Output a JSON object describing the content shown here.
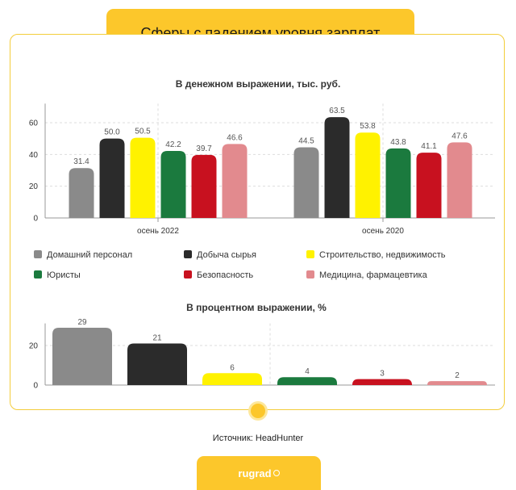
{
  "header": {
    "title": "Сферы с падением уровня зарплат"
  },
  "source": "Источник: HeadHunter",
  "footer": {
    "brand": "rugrad"
  },
  "colors": {
    "Домашний персонал": "#8a8a8a",
    "Добыча сырья": "#2b2b2b",
    "Строительство, недвижимость": "#fff200",
    "Юристы": "#1b7a3e",
    "Безопасность": "#c8111f",
    "Медицина, фармацевтика": "#e28a8e",
    "accent": "#fcc72b"
  },
  "chart_data": [
    {
      "type": "bar",
      "title": "В денежном выражении, тыс. руб.",
      "categories": [
        "осень 2022",
        "осень 2020"
      ],
      "series": [
        {
          "name": "Домашний персонал",
          "values": [
            31.4,
            44.5
          ]
        },
        {
          "name": "Добыча сырья",
          "values": [
            50.0,
            63.5
          ]
        },
        {
          "name": "Строительство, недвижимость",
          "values": [
            50.5,
            53.8
          ]
        },
        {
          "name": "Юристы",
          "values": [
            42.2,
            43.8
          ]
        },
        {
          "name": "Безопасность",
          "values": [
            39.7,
            41.1
          ]
        },
        {
          "name": "Медицина, фармацевтика",
          "values": [
            46.6,
            47.6
          ]
        }
      ],
      "value_labels": [
        [
          "31.4",
          "44.5"
        ],
        [
          "50.0",
          "63.5"
        ],
        [
          "50.5",
          "53.8"
        ],
        [
          "42.2",
          "43.8"
        ],
        [
          "39.7",
          "41.1"
        ],
        [
          "46.6",
          "47.6"
        ]
      ],
      "yticks": [
        0,
        20,
        40,
        60
      ],
      "ylim": [
        0,
        72
      ],
      "grid": true,
      "legend": "bottom"
    },
    {
      "type": "bar",
      "title": "В процентном выражении, %",
      "categories": [
        "Домашний персонал",
        "Добыча сырья",
        "Строительство, недвижимость",
        "Юристы",
        "Безопасность",
        "Медицина, фармацевтика"
      ],
      "values": [
        29,
        21,
        6,
        4,
        3,
        2
      ],
      "yticks": [
        0,
        20
      ],
      "ylim": [
        0,
        32
      ],
      "grid": true
    }
  ]
}
